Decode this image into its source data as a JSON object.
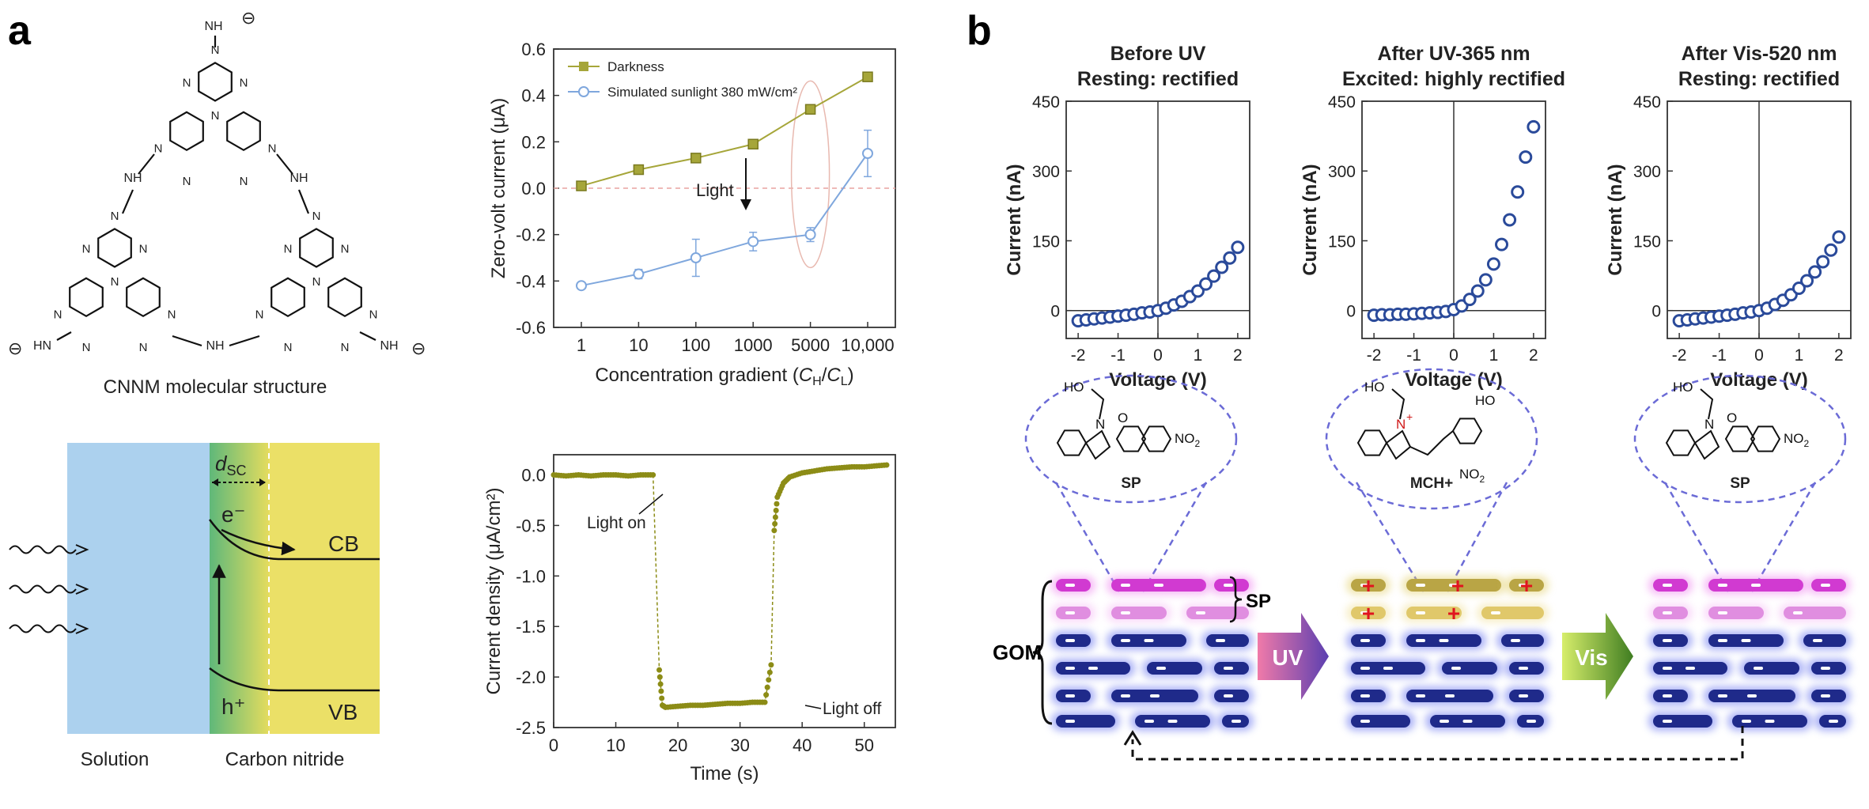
{
  "panel_labels": {
    "a": "a",
    "b": "b"
  },
  "molecule": {
    "caption": "CNNM molecular structure",
    "nh_label": "NH",
    "n_label": "N",
    "hn_label": "HN",
    "minus": "⊖"
  },
  "band_diagram": {
    "solution": "Solution",
    "carbon_nitride": "Carbon nitride",
    "dsc_d": "d",
    "dsc_sub": "SC",
    "electron": "e⁻",
    "hole": "h⁺",
    "cb": "CB",
    "vb": "VB"
  },
  "chart_data": [
    {
      "type": "line",
      "id": "zero-volt",
      "ylabel": "Zero-volt current (μA)",
      "xlabel_pre": "Concentration gradient (",
      "xlabel_ch": "C",
      "xlabel_h": "H",
      "xlabel_mid": "/",
      "xlabel_cl": "C",
      "xlabel_l": "L",
      "xlabel_post": ")",
      "categories": [
        "1",
        "10",
        "100",
        "1000",
        "5000",
        "10,000"
      ],
      "ylim": [
        -0.6,
        0.6
      ],
      "yticks": [
        "0.6",
        "0.4",
        "0.2",
        "0.0",
        "-0.2",
        "-0.4",
        "-0.6"
      ],
      "series": [
        {
          "name": "Darkness",
          "values": [
            0.01,
            0.08,
            0.13,
            0.19,
            0.34,
            0.48
          ],
          "color": "#a6a63a"
        },
        {
          "name": "Simulated sunlight 380 mW/cm²",
          "values": [
            -0.42,
            -0.37,
            -0.3,
            -0.23,
            -0.2,
            0.15
          ],
          "err": [
            0.01,
            0.02,
            0.08,
            0.04,
            0.03,
            0.1
          ],
          "color": "#7fa7dd"
        }
      ],
      "annotation": "Light",
      "legend": "top-left"
    },
    {
      "type": "line",
      "id": "current-density",
      "ylabel": "Current density (μA/cm²)",
      "xlabel": "Time (s)",
      "xlim": [
        0,
        55
      ],
      "ylim": [
        -2.5,
        0.2
      ],
      "xticks": [
        "0",
        "10",
        "20",
        "30",
        "40",
        "50"
      ],
      "yticks": [
        "0.0",
        "-0.5",
        "-1.0",
        "-1.5",
        "-2.0",
        "-2.5"
      ],
      "series": [
        {
          "name": "",
          "x": [
            0,
            2,
            4,
            6,
            8,
            10,
            12,
            14,
            16,
            17,
            17.5,
            18,
            20,
            22,
            24,
            26,
            28,
            30,
            32,
            34,
            35,
            35.5,
            36,
            37,
            38,
            40,
            42,
            44,
            46,
            48,
            50,
            52,
            54
          ],
          "y": [
            0.0,
            -0.01,
            0.0,
            -0.01,
            0.0,
            0.0,
            -0.01,
            0.0,
            0.0,
            -1.93,
            -2.28,
            -2.3,
            -2.29,
            -2.28,
            -2.28,
            -2.27,
            -2.26,
            -2.26,
            -2.25,
            -2.25,
            -1.88,
            -0.55,
            -0.22,
            -0.08,
            -0.02,
            0.02,
            0.04,
            0.06,
            0.07,
            0.08,
            0.08,
            0.09,
            0.1
          ]
        }
      ],
      "annotations": [
        "Light on",
        "Light off"
      ]
    },
    {
      "type": "scatter",
      "id": "iv-before",
      "title_line1": "Before UV",
      "title_line2": "Resting: rectified",
      "xlabel": "Voltage (V)",
      "ylabel": "Current (nA)",
      "xlim": [
        -2.3,
        2.3
      ],
      "ylim": [
        -60,
        450
      ],
      "xticks": [
        "-2",
        "-1",
        "0",
        "1",
        "2"
      ],
      "yticks": [
        "450",
        "300",
        "150",
        "0"
      ],
      "x": [
        -2.0,
        -1.8,
        -1.6,
        -1.4,
        -1.2,
        -1.0,
        -0.8,
        -0.6,
        -0.4,
        -0.2,
        0.0,
        0.2,
        0.4,
        0.6,
        0.8,
        1.0,
        1.2,
        1.4,
        1.6,
        1.8,
        2.0
      ],
      "y": [
        -22,
        -20,
        -18,
        -16,
        -14,
        -12,
        -10,
        -8,
        -5,
        -3,
        0,
        5,
        12,
        20,
        30,
        42,
        57,
        74,
        93,
        113,
        136
      ]
    },
    {
      "type": "scatter",
      "id": "iv-after-uv",
      "title_line1": "After UV-365 nm",
      "title_line2": "Excited: highly rectified",
      "xlabel": "Voltage (V)",
      "ylabel": "Current (nA)",
      "xlim": [
        -2.3,
        2.3
      ],
      "ylim": [
        -60,
        450
      ],
      "xticks": [
        "-2",
        "-1",
        "0",
        "1",
        "2"
      ],
      "yticks": [
        "450",
        "300",
        "150",
        "0"
      ],
      "x": [
        -2.0,
        -1.8,
        -1.6,
        -1.4,
        -1.2,
        -1.0,
        -0.8,
        -0.6,
        -0.4,
        -0.2,
        0.0,
        0.2,
        0.4,
        0.6,
        0.8,
        1.0,
        1.2,
        1.4,
        1.6,
        1.8,
        2.0
      ],
      "y": [
        -10,
        -9,
        -9,
        -8,
        -8,
        -7,
        -6,
        -5,
        -4,
        -2,
        2,
        10,
        24,
        42,
        66,
        100,
        142,
        195,
        255,
        330,
        395
      ]
    },
    {
      "type": "scatter",
      "id": "iv-after-vis",
      "title_line1": "After Vis-520 nm",
      "title_line2": "Resting: rectified",
      "xlabel": "Voltage (V)",
      "ylabel": "Current (nA)",
      "xlim": [
        -2.3,
        2.3
      ],
      "ylim": [
        -60,
        450
      ],
      "xticks": [
        "-2",
        "-1",
        "0",
        "1",
        "2"
      ],
      "yticks": [
        "450",
        "300",
        "150",
        "0"
      ],
      "x": [
        -2.0,
        -1.8,
        -1.6,
        -1.4,
        -1.2,
        -1.0,
        -0.8,
        -0.6,
        -0.4,
        -0.2,
        0.0,
        0.2,
        0.4,
        0.6,
        0.8,
        1.0,
        1.2,
        1.4,
        1.6,
        1.8,
        2.0
      ],
      "y": [
        -22,
        -20,
        -18,
        -16,
        -14,
        -12,
        -10,
        -8,
        -5,
        -3,
        0,
        5,
        13,
        22,
        34,
        48,
        64,
        83,
        105,
        130,
        158
      ]
    }
  ],
  "structures": {
    "sp": "SP",
    "mch": "MCH+",
    "ho": "HO",
    "n": "N",
    "o": "O",
    "no2": "NO",
    "no2_sub": "2",
    "nplus": "+"
  },
  "membrane": {
    "gom": "GOM",
    "sp": "SP",
    "uv": "UV",
    "vis": "Vis",
    "minus_mark": "-",
    "plus_mark": "+"
  },
  "colors": {
    "darkness": "#a6a63a",
    "sunlight": "#7fa7dd",
    "trace": "#8c8c16",
    "iv_marker": "#2a4a9a",
    "dashed_purple": "#6b6bd6",
    "magenta": "#d13ad1",
    "navy": "#1f2a8a",
    "olive": "#b9a545"
  }
}
